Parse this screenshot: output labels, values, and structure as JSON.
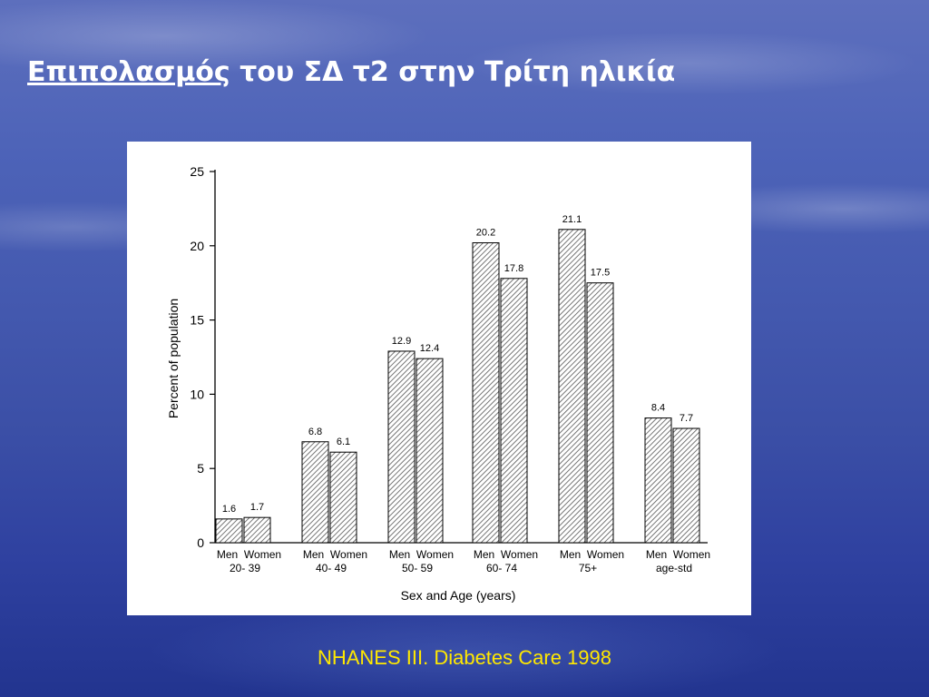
{
  "slide": {
    "title_underlined": " Επιπολασμός",
    "title_rest": " του ΣΔ τ2 στην Τρίτη ηλικία",
    "source": "NHANES III. Diabetes Care 1998"
  },
  "chart_data": {
    "type": "bar",
    "title": "",
    "xlabel": "Sex and Age (years)",
    "ylabel": "Percent of population",
    "ylim": [
      0,
      25
    ],
    "yticks": [
      0,
      5,
      10,
      15,
      20,
      25
    ],
    "grid": false,
    "groups": [
      {
        "label": "20- 39",
        "bars": [
          {
            "sex": "Men",
            "value": 1.6
          },
          {
            "sex": "Women",
            "value": 1.7
          }
        ]
      },
      {
        "label": "40- 49",
        "bars": [
          {
            "sex": "Men",
            "value": 6.8
          },
          {
            "sex": "Women",
            "value": 6.1
          }
        ]
      },
      {
        "label": "50- 59",
        "bars": [
          {
            "sex": "Men",
            "value": 12.9
          },
          {
            "sex": "Women",
            "value": 12.4
          }
        ]
      },
      {
        "label": "60- 74",
        "bars": [
          {
            "sex": "Men",
            "value": 20.2
          },
          {
            "sex": "Women",
            "value": 17.8
          }
        ]
      },
      {
        "label": "75+",
        "bars": [
          {
            "sex": "Men",
            "value": 21.1
          },
          {
            "sex": "Women",
            "value": 17.5
          }
        ]
      },
      {
        "label": "age-std",
        "bars": [
          {
            "sex": "Men",
            "value": 8.4
          },
          {
            "sex": "Women",
            "value": 7.7
          }
        ]
      }
    ]
  }
}
